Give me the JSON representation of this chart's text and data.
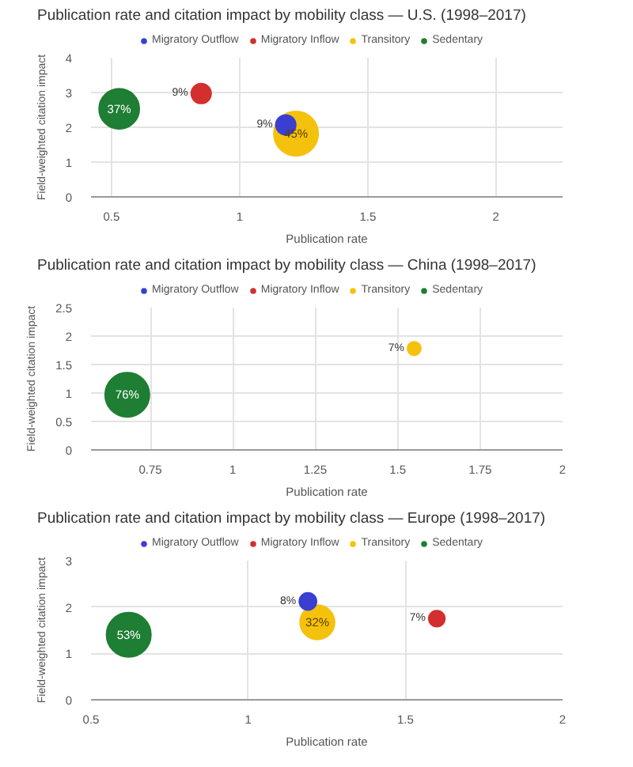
{
  "chart_data": [
    {
      "type": "bubble",
      "title": "Publication rate and citation impact by mobility class — U.S. (1998–2017)",
      "xlabel": "Publication rate",
      "ylabel": "Field-weighted citation impact",
      "xlim": [
        0.42,
        2.26
      ],
      "xticks": [
        0.5,
        1,
        1.5,
        2
      ],
      "ylim": [
        0,
        4
      ],
      "yticks": [
        0,
        1,
        2,
        3,
        4
      ],
      "grid": true,
      "legend": "top",
      "series": [
        {
          "name": "Migratory Outflow",
          "color": "#3b3fd1",
          "x": [
            1.18
          ],
          "values": [
            2.07
          ],
          "sizes": [
            9
          ],
          "value_labels": [
            "9%"
          ]
        },
        {
          "name": "Migratory Inflow",
          "color": "#d32f2f",
          "x": [
            0.85
          ],
          "values": [
            2.97
          ],
          "sizes": [
            9
          ],
          "value_labels": [
            "9%"
          ]
        },
        {
          "name": "Transitory",
          "color": "#f4c20d",
          "x": [
            1.22
          ],
          "values": [
            1.82
          ],
          "sizes": [
            45
          ],
          "value_labels": [
            "45%"
          ]
        },
        {
          "name": "Sedentary",
          "color": "#1e7e34",
          "x": [
            0.53
          ],
          "values": [
            2.53
          ],
          "sizes": [
            37
          ],
          "value_labels": [
            "37%"
          ]
        }
      ]
    },
    {
      "type": "bubble",
      "title": "Publication rate and citation impact by mobility class — China (1998–2017)",
      "xlabel": "Publication rate",
      "ylabel": "Field-weighted citation impact",
      "xlim": [
        0.57,
        2.0
      ],
      "xticks": [
        0.75,
        1,
        1.25,
        1.5,
        1.75,
        2
      ],
      "ylim": [
        0,
        2.5
      ],
      "yticks": [
        0,
        0.5,
        1,
        1.5,
        2,
        2.5
      ],
      "grid": true,
      "legend": "top",
      "series": [
        {
          "name": "Migratory Outflow",
          "color": "#3b3fd1",
          "x": [
            null
          ],
          "values": [
            null
          ],
          "sizes": [
            null
          ],
          "value_labels": [
            null
          ]
        },
        {
          "name": "Migratory Inflow",
          "color": "#d32f2f",
          "x": [
            null
          ],
          "values": [
            null
          ],
          "sizes": [
            null
          ],
          "value_labels": [
            null
          ]
        },
        {
          "name": "Transitory",
          "color": "#f4c20d",
          "x": [
            1.55
          ],
          "values": [
            1.78
          ],
          "sizes": [
            7
          ],
          "value_labels": [
            "7%"
          ]
        },
        {
          "name": "Sedentary",
          "color": "#1e7e34",
          "x": [
            0.68
          ],
          "values": [
            0.97
          ],
          "sizes": [
            76
          ],
          "value_labels": [
            "76%"
          ]
        }
      ]
    },
    {
      "type": "bubble",
      "title": "Publication rate and citation impact by mobility class — Europe (1998–2017)",
      "xlabel": "Publication rate",
      "ylabel": "Field-weighted citation impact",
      "xlim": [
        0.5,
        2
      ],
      "xticks": [
        0.5,
        1,
        1.5,
        2
      ],
      "ylim": [
        0,
        3
      ],
      "yticks": [
        0,
        1,
        2,
        3
      ],
      "grid": true,
      "legend": "top",
      "series": [
        {
          "name": "Migratory Outflow",
          "color": "#3b3fd1",
          "x": [
            1.19
          ],
          "values": [
            2.12
          ],
          "sizes": [
            8
          ],
          "value_labels": [
            "8%"
          ]
        },
        {
          "name": "Migratory Inflow",
          "color": "#d32f2f",
          "x": [
            1.6
          ],
          "values": [
            1.75
          ],
          "sizes": [
            7
          ],
          "value_labels": [
            "7%"
          ]
        },
        {
          "name": "Transitory",
          "color": "#f4c20d",
          "x": [
            1.22
          ],
          "values": [
            1.67
          ],
          "sizes": [
            32
          ],
          "value_labels": [
            "32%"
          ]
        },
        {
          "name": "Sedentary",
          "color": "#1e7e34",
          "x": [
            0.62
          ],
          "values": [
            1.4
          ],
          "sizes": [
            53
          ],
          "value_labels": [
            "53%"
          ]
        }
      ]
    }
  ]
}
